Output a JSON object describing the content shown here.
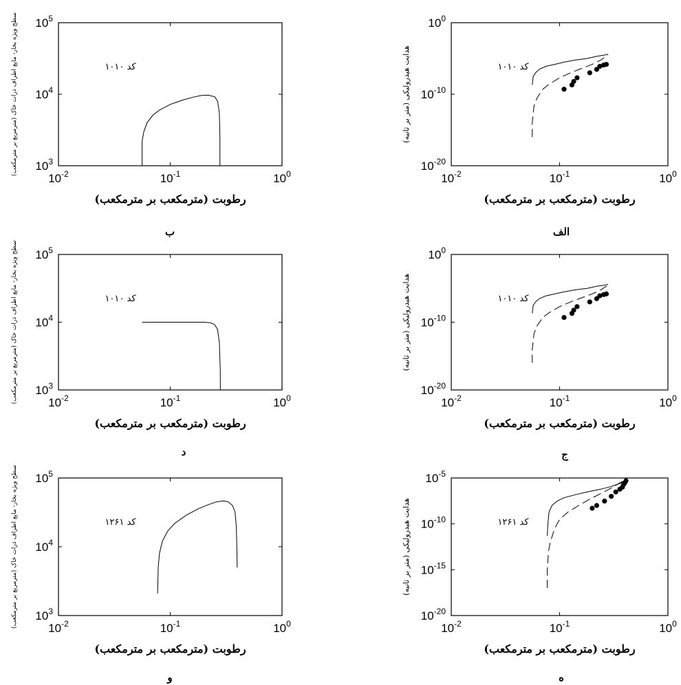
{
  "chart_data": [
    {
      "id": "b",
      "type": "line",
      "panel_label": "ب",
      "xlabel": "رطوبت (مترمکعب بر مترمکعب)",
      "ylabel": "سطح ویژه بخار- مایع اطراف ذرات خاک (مترمربع بر مترمکعب)",
      "annotation": "کد ۱۰۱۰",
      "xscale": "log",
      "yscale": "log",
      "xlim": [
        0.01,
        1
      ],
      "ylim": [
        1000,
        100000
      ],
      "xticks": [
        {
          "value": 0.01,
          "base": "10",
          "exp": "-2"
        },
        {
          "value": 0.1,
          "base": "10",
          "exp": "-1"
        },
        {
          "value": 1,
          "base": "10",
          "exp": "0"
        }
      ],
      "yticks": [
        {
          "value": 1000,
          "base": "10",
          "exp": "3"
        },
        {
          "value": 10000,
          "base": "10",
          "exp": "4"
        },
        {
          "value": 100000,
          "base": "10",
          "exp": "5"
        }
      ],
      "series": [
        {
          "style": "solid",
          "x": [
            0.056,
            0.056,
            0.058,
            0.062,
            0.07,
            0.08,
            0.1,
            0.13,
            0.16,
            0.19,
            0.22,
            0.25,
            0.265,
            0.275,
            0.278,
            0.278
          ],
          "y": [
            1000,
            2200,
            3000,
            4000,
            5100,
            6000,
            7200,
            8300,
            9100,
            9600,
            9700,
            9200,
            8000,
            5500,
            2500,
            1000
          ]
        }
      ]
    },
    {
      "id": "alef",
      "type": "line",
      "panel_label": "الف",
      "xlabel": "رطوبت (مترمکعب بر مترمکعب)",
      "ylabel": "هدایت هیدرولیکی (متر بر ثانیه)",
      "annotation": "کد ۱۰۱۰",
      "xscale": "log",
      "yscale": "log",
      "xlim": [
        0.01,
        1
      ],
      "ylim": [
        1e-20,
        1
      ],
      "xticks": [
        {
          "value": 0.01,
          "base": "10",
          "exp": "-2"
        },
        {
          "value": 0.1,
          "base": "10",
          "exp": "-1"
        },
        {
          "value": 1,
          "base": "10",
          "exp": "0"
        }
      ],
      "yticks": [
        {
          "value": 1e-20,
          "base": "10",
          "exp": "-20"
        },
        {
          "value": 1e-10,
          "base": "10",
          "exp": "-10"
        },
        {
          "value": 1,
          "base": "10",
          "exp": "0"
        }
      ],
      "series": [
        {
          "style": "solid",
          "x": [
            0.056,
            0.057,
            0.06,
            0.065,
            0.075,
            0.09,
            0.11,
            0.14,
            0.18,
            0.22,
            0.26,
            0.28
          ],
          "y": [
            2e-09,
            3e-08,
            1e-07,
            3e-07,
            8e-07,
            1.5e-06,
            3e-06,
            6e-06,
            1e-05,
            2e-05,
            3e-05,
            4e-05
          ]
        },
        {
          "style": "dashed",
          "x": [
            0.056,
            0.056,
            0.058,
            0.062,
            0.07,
            0.08,
            0.1,
            0.13,
            0.16,
            0.2,
            0.24,
            0.28
          ],
          "y": [
            1e-16,
            1e-14,
            2e-12,
            3e-11,
            5e-10,
            2.5e-09,
            2e-08,
            1.2e-07,
            4e-07,
            1.5e-06,
            6e-06,
            3e-05
          ]
        },
        {
          "style": "markers",
          "x": [
            0.11,
            0.13,
            0.135,
            0.145,
            0.19,
            0.22,
            0.235,
            0.255,
            0.27
          ],
          "y": [
            5e-10,
            2e-09,
            6e-09,
            2e-08,
            1e-07,
            3e-07,
            8e-07,
            1.2e-06,
            1.5e-06
          ]
        }
      ]
    },
    {
      "id": "d",
      "type": "line",
      "panel_label": "د",
      "xlabel": "رطوبت (مترمکعب بر مترمکعب)",
      "ylabel": "سطح ویژه بخار- مایع اطراف ذرات خاک (مترمربع بر مترمکعب)",
      "annotation": "کد ۱۰۱۰",
      "xscale": "log",
      "yscale": "log",
      "xlim": [
        0.01,
        1
      ],
      "ylim": [
        1000,
        100000
      ],
      "xticks": [
        {
          "value": 0.01,
          "base": "10",
          "exp": "-2"
        },
        {
          "value": 0.1,
          "base": "10",
          "exp": "-1"
        },
        {
          "value": 1,
          "base": "10",
          "exp": "0"
        }
      ],
      "yticks": [
        {
          "value": 1000,
          "base": "10",
          "exp": "3"
        },
        {
          "value": 10000,
          "base": "10",
          "exp": "4"
        },
        {
          "value": 100000,
          "base": "10",
          "exp": "5"
        }
      ],
      "series": [
        {
          "style": "solid",
          "x": [
            0.056,
            0.1,
            0.15,
            0.2,
            0.23,
            0.25,
            0.265,
            0.275,
            0.28,
            0.281
          ],
          "y": [
            10000,
            10000,
            10000,
            10000,
            9800,
            9200,
            7800,
            5000,
            2000,
            1000
          ]
        }
      ]
    },
    {
      "id": "jim",
      "type": "line",
      "panel_label": "ج",
      "xlabel": "رطوبت (مترمکعب بر مترمکعب)",
      "ylabel": "هدایت هیدرولیکی (متر بر ثانیه)",
      "annotation": "کد ۱۰۱۰",
      "xscale": "log",
      "yscale": "log",
      "xlim": [
        0.01,
        1
      ],
      "ylim": [
        1e-20,
        1
      ],
      "xticks": [
        {
          "value": 0.01,
          "base": "10",
          "exp": "-2"
        },
        {
          "value": 0.1,
          "base": "10",
          "exp": "-1"
        },
        {
          "value": 1,
          "base": "10",
          "exp": "0"
        }
      ],
      "yticks": [
        {
          "value": 1e-20,
          "base": "10",
          "exp": "-20"
        },
        {
          "value": 1e-10,
          "base": "10",
          "exp": "-10"
        },
        {
          "value": 1,
          "base": "10",
          "exp": "0"
        }
      ],
      "series": [
        {
          "style": "solid",
          "x": [
            0.056,
            0.057,
            0.06,
            0.065,
            0.075,
            0.09,
            0.11,
            0.14,
            0.18,
            0.22,
            0.26,
            0.28
          ],
          "y": [
            2e-09,
            3e-08,
            1e-07,
            3e-07,
            8e-07,
            1.5e-06,
            3e-06,
            6e-06,
            1e-05,
            2e-05,
            3e-05,
            4e-05
          ]
        },
        {
          "style": "dashed",
          "x": [
            0.056,
            0.056,
            0.058,
            0.062,
            0.07,
            0.08,
            0.1,
            0.13,
            0.16,
            0.2,
            0.24,
            0.28
          ],
          "y": [
            1e-16,
            1e-14,
            2e-12,
            3e-11,
            5e-10,
            2.5e-09,
            2e-08,
            1.2e-07,
            4e-07,
            1.5e-06,
            6e-06,
            3e-05
          ]
        },
        {
          "style": "markers",
          "x": [
            0.11,
            0.13,
            0.135,
            0.145,
            0.19,
            0.22,
            0.235,
            0.255,
            0.27
          ],
          "y": [
            5e-10,
            2e-09,
            6e-09,
            2e-08,
            1e-07,
            3e-07,
            8e-07,
            1.2e-06,
            1.5e-06
          ]
        }
      ]
    },
    {
      "id": "vav",
      "type": "line",
      "panel_label": "و",
      "xlabel": "رطوبت (مترمکعب بر مترمکعب)",
      "ylabel": "سطح ویژه بخار- مایع اطراف ذرات خاک (مترمربع بر مترمکعب)",
      "annotation": "کد ۱۲۶۱",
      "xscale": "log",
      "yscale": "log",
      "xlim": [
        0.01,
        1
      ],
      "ylim": [
        1000,
        100000
      ],
      "xticks": [
        {
          "value": 0.01,
          "base": "10",
          "exp": "-2"
        },
        {
          "value": 0.1,
          "base": "10",
          "exp": "-1"
        },
        {
          "value": 1,
          "base": "10",
          "exp": "0"
        }
      ],
      "yticks": [
        {
          "value": 1000,
          "base": "10",
          "exp": "3"
        },
        {
          "value": 10000,
          "base": "10",
          "exp": "4"
        },
        {
          "value": 100000,
          "base": "10",
          "exp": "5"
        }
      ],
      "series": [
        {
          "style": "solid",
          "x": [
            0.077,
            0.078,
            0.08,
            0.085,
            0.095,
            0.11,
            0.14,
            0.18,
            0.22,
            0.26,
            0.3,
            0.33,
            0.36,
            0.38,
            0.39,
            0.395,
            0.397
          ],
          "y": [
            2100,
            5000,
            8000,
            12000,
            17000,
            22000,
            29000,
            36000,
            41000,
            45000,
            46500,
            45000,
            40000,
            32000,
            20000,
            9000,
            5000
          ]
        }
      ]
    },
    {
      "id": "he",
      "type": "line",
      "panel_label": "ه",
      "xlabel": "رطوبت (مترمکعب بر مترمکعب)",
      "ylabel": "هدایت هیدرولیکی (متر بر ثانیه)",
      "annotation": "کد ۱۲۶۱",
      "xscale": "log",
      "yscale": "log",
      "xlim": [
        0.01,
        1
      ],
      "ylim": [
        1e-20,
        1e-05
      ],
      "xticks": [
        {
          "value": 0.01,
          "base": "10",
          "exp": "-2"
        },
        {
          "value": 0.1,
          "base": "10",
          "exp": "-1"
        },
        {
          "value": 1,
          "base": "10",
          "exp": "0"
        }
      ],
      "yticks": [
        {
          "value": 1e-20,
          "base": "10",
          "exp": "-20"
        },
        {
          "value": 1e-15,
          "base": "10",
          "exp": "-15"
        },
        {
          "value": 1e-10,
          "base": "10",
          "exp": "-10"
        },
        {
          "value": 1e-05,
          "base": "10",
          "exp": "-5"
        }
      ],
      "series": [
        {
          "style": "solid",
          "x": [
            0.077,
            0.078,
            0.08,
            0.085,
            0.095,
            0.11,
            0.14,
            0.18,
            0.24,
            0.3,
            0.36,
            0.4
          ],
          "y": [
            5e-12,
            1e-10,
            2e-09,
            1e-08,
            3e-08,
            7e-08,
            1.5e-07,
            3e-07,
            6e-07,
            1.2e-06,
            2.5e-06,
            5e-06
          ]
        },
        {
          "style": "dashed",
          "x": [
            0.077,
            0.077,
            0.079,
            0.082,
            0.09,
            0.1,
            0.12,
            0.15,
            0.19,
            0.24,
            0.3,
            0.36,
            0.4
          ],
          "y": [
            1e-17,
            1e-15,
            1e-13,
            1e-12,
            3e-11,
            3e-10,
            2e-09,
            1e-08,
            5e-08,
            2e-07,
            8e-07,
            3e-06,
            6e-06
          ]
        },
        {
          "style": "markers",
          "x": [
            0.2,
            0.22,
            0.26,
            0.3,
            0.33,
            0.36,
            0.38,
            0.39,
            0.4,
            0.41
          ],
          "y": [
            5e-09,
            1e-08,
            3e-08,
            1e-07,
            3e-07,
            6e-07,
            1e-06,
            2e-06,
            3e-06,
            5e-06
          ]
        }
      ]
    }
  ]
}
